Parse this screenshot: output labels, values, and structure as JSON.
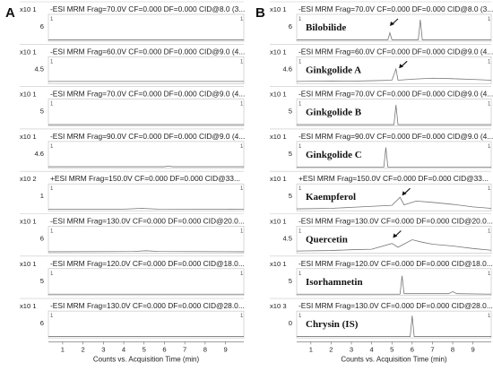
{
  "chart_data": [
    {
      "panel": "A",
      "type": "line",
      "xlabel": "Counts vs. Acquisition Time (min)",
      "x_ticks": [
        1,
        2,
        3,
        4,
        5,
        6,
        7,
        8,
        9
      ],
      "xlim": [
        0.3,
        9.9
      ],
      "traces": [
        {
          "header": "-ESI MRM Frag=70.0V CF=0.000 DF=0.000 CID@8.0 (3...",
          "scale": "x10 1",
          "ytick": "6",
          "points": [
            [
              0.3,
              0.02
            ],
            [
              9.9,
              0.02
            ]
          ]
        },
        {
          "header": "-ESI MRM Frag=60.0V CF=0.000 DF=0.000 CID@9.0 (4...",
          "scale": "x10 1",
          "ytick": "4.5",
          "points": [
            [
              0.3,
              0.05
            ],
            [
              9.9,
              0.05
            ]
          ]
        },
        {
          "header": "-ESI MRM Frag=70.0V CF=0.000 DF=0.000 CID@9.0 (4...",
          "scale": "x10 1",
          "ytick": "5",
          "points": [
            [
              0.3,
              0.02
            ],
            [
              9.9,
              0.02
            ]
          ]
        },
        {
          "header": "-ESI MRM Frag=90.0V CF=0.000 DF=0.000 CID@9.0 (4...",
          "scale": "x10 1",
          "ytick": "4.6",
          "points": [
            [
              0.3,
              0.03
            ],
            [
              6.0,
              0.03
            ],
            [
              6.2,
              0.06
            ],
            [
              6.4,
              0.03
            ],
            [
              9.9,
              0.03
            ]
          ]
        },
        {
          "header": "+ESI MRM Frag=150.0V CF=0.000 DF=0.000 CID@33...",
          "scale": "x10 2",
          "ytick": "1",
          "points": [
            [
              0.3,
              0.02
            ],
            [
              4.0,
              0.03
            ],
            [
              4.9,
              0.06
            ],
            [
              5.7,
              0.03
            ],
            [
              9.9,
              0.02
            ]
          ]
        },
        {
          "header": "-ESI MRM Frag=130.0V CF=0.000 DF=0.000 CID@20.0...",
          "scale": "x10 1",
          "ytick": "6",
          "points": [
            [
              0.3,
              0.02
            ],
            [
              4.5,
              0.03
            ],
            [
              5.1,
              0.06
            ],
            [
              5.7,
              0.03
            ],
            [
              9.9,
              0.02
            ]
          ]
        },
        {
          "header": "-ESI MRM Frag=120.0V CF=0.000 DF=0.000 CID@18.0...",
          "scale": "x10 1",
          "ytick": "5",
          "points": [
            [
              0.3,
              0.02
            ],
            [
              9.9,
              0.02
            ]
          ]
        },
        {
          "header": "-ESI MRM Frag=130.0V CF=0.000 DF=0.000 CID@28.0...",
          "scale": "x10 1",
          "ytick": "6",
          "points": [
            [
              0.3,
              0.02
            ],
            [
              9.9,
              0.02
            ]
          ]
        }
      ]
    },
    {
      "panel": "B",
      "type": "line",
      "xlabel": "Counts vs. Acquisition Time (min)",
      "x_ticks": [
        1,
        2,
        3,
        4,
        5,
        6,
        7,
        8,
        9
      ],
      "xlim": [
        0.3,
        9.9
      ],
      "traces": [
        {
          "header": "-ESI MRM Frag=70.0V CF=0.000 DF=0.000 CID@8.0 (3...",
          "scale": "x10 1",
          "ytick": "6",
          "compound": "Bilobilide",
          "arrow_at": 4.9,
          "points": [
            [
              0.3,
              0.02
            ],
            [
              4.8,
              0.02
            ],
            [
              4.9,
              0.3
            ],
            [
              5.0,
              0.02
            ],
            [
              6.3,
              0.02
            ],
            [
              6.4,
              0.82
            ],
            [
              6.5,
              0.02
            ],
            [
              9.9,
              0.02
            ]
          ]
        },
        {
          "header": "-ESI MRM Frag=60.0V CF=0.000 DF=0.000 CID@9.0 (4...",
          "scale": "x10 1",
          "ytick": "4.6",
          "compound": "Ginkgolide A",
          "arrow_at": 5.35,
          "points": [
            [
              0.3,
              0.05
            ],
            [
              2.0,
              0.07
            ],
            [
              3.0,
              0.06
            ],
            [
              4.0,
              0.08
            ],
            [
              5.0,
              0.1
            ],
            [
              5.2,
              0.55
            ],
            [
              5.3,
              0.1
            ],
            [
              6.0,
              0.14
            ],
            [
              7.0,
              0.18
            ],
            [
              8.0,
              0.16
            ],
            [
              9.0,
              0.13
            ],
            [
              9.9,
              0.1
            ]
          ]
        },
        {
          "header": "-ESI MRM Frag=70.0V CF=0.000 DF=0.000 CID@9.0 (4...",
          "scale": "x10 1",
          "ytick": "5",
          "compound": "Ginkgolide B",
          "points": [
            [
              0.3,
              0.02
            ],
            [
              5.1,
              0.02
            ],
            [
              5.2,
              0.8
            ],
            [
              5.3,
              0.02
            ],
            [
              9.9,
              0.02
            ]
          ]
        },
        {
          "header": "-ESI MRM Frag=90.0V CF=0.000 DF=0.000 CID@9.0 (4...",
          "scale": "x10 1",
          "ytick": "5",
          "compound": "Ginkgolide C",
          "points": [
            [
              0.3,
              0.02
            ],
            [
              4.6,
              0.02
            ],
            [
              4.7,
              0.8
            ],
            [
              4.8,
              0.02
            ],
            [
              9.9,
              0.02
            ]
          ]
        },
        {
          "header": "+ESI MRM Frag=150.0V CF=0.000 DF=0.000 CID@33...",
          "scale": "x10 1",
          "ytick": "5",
          "compound": "Kaempferol",
          "arrow_at": 5.5,
          "points": [
            [
              0.3,
              0.04
            ],
            [
              2.0,
              0.06
            ],
            [
              3.0,
              0.1
            ],
            [
              4.0,
              0.14
            ],
            [
              5.0,
              0.18
            ],
            [
              5.4,
              0.5
            ],
            [
              5.6,
              0.2
            ],
            [
              6.2,
              0.35
            ],
            [
              7.0,
              0.3
            ],
            [
              8.0,
              0.22
            ],
            [
              9.0,
              0.12
            ],
            [
              9.9,
              0.06
            ]
          ]
        },
        {
          "header": "-ESI MRM Frag=130.0V CF=0.000 DF=0.000 CID@20.0...",
          "scale": "x10 1",
          "ytick": "4.5",
          "compound": "Quercetin",
          "arrow_at": 5.05,
          "points": [
            [
              0.3,
              0.05
            ],
            [
              2.0,
              0.07
            ],
            [
              3.0,
              0.1
            ],
            [
              4.0,
              0.12
            ],
            [
              5.0,
              0.35
            ],
            [
              5.3,
              0.2
            ],
            [
              6.0,
              0.5
            ],
            [
              6.5,
              0.4
            ],
            [
              7.0,
              0.32
            ],
            [
              8.0,
              0.25
            ],
            [
              9.0,
              0.15
            ],
            [
              9.9,
              0.08
            ]
          ]
        },
        {
          "header": "-ESI MRM Frag=120.0V CF=0.000 DF=0.000 CID@18.0...",
          "scale": "x10 1",
          "ytick": "5",
          "compound": "Isorhamnetin",
          "points": [
            [
              0.3,
              0.02
            ],
            [
              5.4,
              0.02
            ],
            [
              5.5,
              0.75
            ],
            [
              5.6,
              0.04
            ],
            [
              7.8,
              0.04
            ],
            [
              8.0,
              0.12
            ],
            [
              8.2,
              0.04
            ],
            [
              9.9,
              0.02
            ]
          ]
        },
        {
          "header": "-ESI MRM Frag=130.0V CF=0.000 DF=0.000 CID@28.0...",
          "scale": "x10 3",
          "ytick": "0",
          "compound": "Chrysin (IS)",
          "points": [
            [
              0.3,
              0.02
            ],
            [
              5.9,
              0.02
            ],
            [
              6.0,
              0.85
            ],
            [
              6.1,
              0.02
            ],
            [
              9.9,
              0.02
            ]
          ]
        }
      ]
    }
  ]
}
